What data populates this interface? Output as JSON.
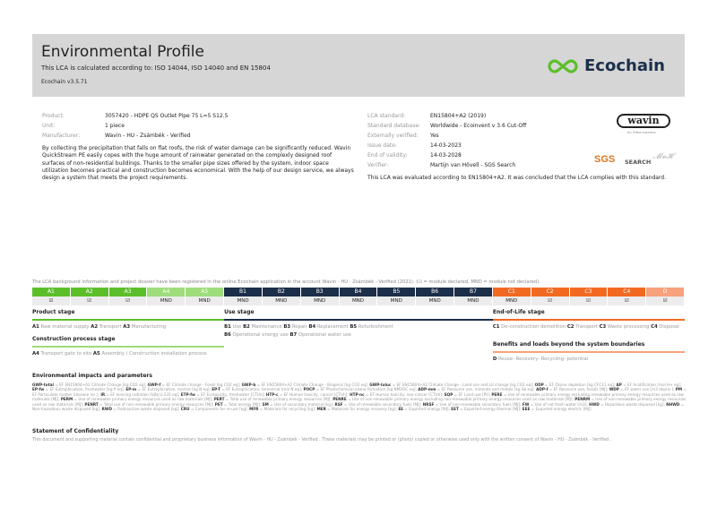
{
  "header": {
    "title": "Environmental Profile",
    "subtitle": "This LCA is calculated according to: ISO 14044, ISO 14040 and EN 15804",
    "version": "Ecochain v3.5.71",
    "logo": "Ecochain"
  },
  "product_info": [
    {
      "label": "Product:",
      "value": "3057420 - HDPE QS Outlet Pipe 75 L=5 S12.5"
    },
    {
      "label": "Unit:",
      "value": "1 piece"
    },
    {
      "label": "Manufacturer:",
      "value": "Wavin - HU - Zsámbék - Verified"
    }
  ],
  "description": "By collecting the precipitation that falls on flat roofs, the risk of water damage can be significantly reduced. Wavin QuickStream PE easily copes with the huge amount of rainwater generated on the complexly designed roof surfaces of non-residential buildings. Thanks to the smaller pipe sizes offered by the system, indoor space utilization becomes practical and construction becomes economical. With the help of our design service, we always design a system that meets the project requirements.",
  "lca_info": [
    {
      "label": "LCA standard:",
      "value": "EN15804+A2 (2019)"
    },
    {
      "label": "Standard database:",
      "value": "Worldwide - Ecoinvent v 3.6 Cut-Off"
    },
    {
      "label": "Externally verified:",
      "value": "Yes"
    },
    {
      "label": "Issue date:",
      "value": "14-03-2023"
    },
    {
      "label": "End of validity:",
      "value": "14-03-2028"
    },
    {
      "label": "Verifier:",
      "value": "Martijn van Hövell - SGS Search"
    }
  ],
  "conclusion": "This LCA was evaluated according to EN15804+A2. It was concluded that the LCA complies with this standard.",
  "logos": {
    "wavin": "wavin",
    "wavin_sub": "An Orbia business",
    "sgs": "SGS",
    "sgs_search": "SEARCH"
  },
  "note": "The LCA background information and project dossier have been registered in the online Ecochain application in the account Wavin - HU - Zsámbék - Verified (2021). (☑ = module declared, MND = module not declared).",
  "modules": [
    {
      "code": "A1",
      "mark": "☑",
      "color": "#5cbf2a"
    },
    {
      "code": "A2",
      "mark": "☑",
      "color": "#5cbf2a"
    },
    {
      "code": "A3",
      "mark": "☑",
      "color": "#5cbf2a"
    },
    {
      "code": "A4",
      "mark": "MND",
      "color": "#9edc7c"
    },
    {
      "code": "A5",
      "mark": "MND",
      "color": "#9edc7c"
    },
    {
      "code": "B1",
      "mark": "MND",
      "color": "#1c2f4a"
    },
    {
      "code": "B2",
      "mark": "MND",
      "color": "#1c2f4a"
    },
    {
      "code": "B3",
      "mark": "MND",
      "color": "#1c2f4a"
    },
    {
      "code": "B4",
      "mark": "MND",
      "color": "#1c2f4a"
    },
    {
      "code": "B5",
      "mark": "MND",
      "color": "#1c2f4a"
    },
    {
      "code": "B6",
      "mark": "MND",
      "color": "#1c2f4a"
    },
    {
      "code": "B7",
      "mark": "MND",
      "color": "#1c2f4a"
    },
    {
      "code": "C1",
      "mark": "MND",
      "color": "#f26a22"
    },
    {
      "code": "C2",
      "mark": "☑",
      "color": "#f26a22"
    },
    {
      "code": "C3",
      "mark": "☑",
      "color": "#f26a22"
    },
    {
      "code": "C4",
      "mark": "☑",
      "color": "#f26a22"
    },
    {
      "code": "D",
      "mark": "☑",
      "color": "#f7a27c"
    }
  ],
  "stages": {
    "product": {
      "title": "Product stage",
      "items": [
        [
          "A1",
          "Raw material supply"
        ],
        [
          "A2",
          "Transport"
        ],
        [
          "A3",
          "Manufacturing"
        ]
      ]
    },
    "construction": {
      "title": "Construction process stage",
      "items": [
        [
          "A4",
          "Transport gate to site"
        ],
        [
          "A5",
          "Assembly / Construction installation process"
        ]
      ]
    },
    "use": {
      "title": "Use stage",
      "items": [
        [
          "B1",
          "Use"
        ],
        [
          "B2",
          "Maintenance"
        ],
        [
          "B3",
          "Repair"
        ],
        [
          "B4",
          "Replacement"
        ],
        [
          "B5",
          "Refurbishment"
        ],
        [
          "B6",
          "Operational energy use"
        ],
        [
          "B7",
          "Operational water use"
        ]
      ]
    },
    "eol": {
      "title": "End-of-Life stage",
      "items": [
        [
          "C1",
          "De-construction demolition"
        ],
        [
          "C2",
          "Transport"
        ],
        [
          "C3",
          "Waste processing"
        ],
        [
          "C4",
          "Disposal"
        ]
      ]
    },
    "beyond": {
      "title": "Benefits and loads beyond the system boundaries",
      "items": [
        [
          "D",
          "Reuse- Recovery- Recycling- potential"
        ]
      ]
    }
  },
  "glossary_title": "Environmental impacts and parameters",
  "glossary": [
    [
      "GWP-total",
      "EF EN15804+A2 Climate Change [kg CO2 eq]"
    ],
    [
      "GWP-f",
      "EF Climate change - Fossil [kg CO2 eq]"
    ],
    [
      "GWP-b",
      "EF EN15804+A2 Climate Change - Biogenic [kg CO2 eq]"
    ],
    [
      "GWP-luluc",
      "EF EN15804+A2 Climate Change - Land use and LU change [kg CO2 eq]"
    ],
    [
      "ODP",
      "EF Ozone depletion [kg CFC11 eq]"
    ],
    [
      "AP",
      "EF Acidification [mol H+ eq]"
    ],
    [
      "EP-fw",
      "EF Eutrophication, freshwater [kg P eq]"
    ],
    [
      "EP-m",
      "EF Eutrophication, marine [kg N eq]"
    ],
    [
      "EP-T",
      "EF Eutrophication, terrestrial [mol N eq]"
    ],
    [
      "POCP",
      "EF Photochemical ozone formation [kg NMVOC eq]"
    ],
    [
      "ADP-mm",
      "EF Resource use, minerals and metals [kg Sb eq]"
    ],
    [
      "ADP-f",
      "EF Resource use, fossils [MJ]"
    ],
    [
      "WDP",
      "EF water use [m3 depriv.]"
    ],
    [
      "PM",
      "EF Particulate matter [disease inc.]"
    ],
    [
      "IR",
      "EF Ionising radiation [kBq U-235 eq]"
    ],
    [
      "ETP-fw",
      "EF Ecotoxicity, freshwater [CTUe]"
    ],
    [
      "HTP-c",
      "EF Human toxicity, cancer [CTUh]"
    ],
    [
      "HTP-nc",
      "EF Human toxicity, non-cancer [CTUh]"
    ],
    [
      "SQP",
      "EF Land use [Pt]"
    ],
    [
      "PERE",
      "Use of renewable primary energy excluding renewable primary energy resources used as raw materials [MJ]"
    ],
    [
      "PERM",
      "Use of renewable primary energy resources used as raw materials [MJ]"
    ],
    [
      "PERT",
      "Total use of renewable primary energy resources [MJ]"
    ],
    [
      "PENRE",
      "Use of non-renewable primary energy excluding non-renewable primary energy resources used as raw materials [MJ]"
    ],
    [
      "PENRM",
      "Use of non-renewable primary energy resources used as raw materials [MJ]"
    ],
    [
      "PENRT",
      "Total use of non-renewable primary energy resources [MJ]"
    ],
    [
      "PET",
      "Total energy [MJ]"
    ],
    [
      "SM",
      "Use of secondary material [kg]"
    ],
    [
      "RSF",
      "Use of renewable secondary fuels [MJ]"
    ],
    [
      "NRSF",
      "Use of non-renewable secondary fuels [MJ]"
    ],
    [
      "FW",
      "Use of net fresh water [m3]"
    ],
    [
      "HWD",
      "Hazardous waste disposed [kg]"
    ],
    [
      "NHWD",
      "Non-hazardous waste disposed [kg]"
    ],
    [
      "RWD",
      "Radioactive waste disposed [kg]"
    ],
    [
      "CRU",
      "Components for re-use [kg]"
    ],
    [
      "MFR",
      "Materials for recycling [kg]"
    ],
    [
      "MER",
      "Materials for energy recovery [kg]"
    ],
    [
      "EE",
      "Exported energy [MJ]"
    ],
    [
      "EET",
      "Exported energy thermal [MJ]"
    ],
    [
      "EEE",
      "Exported energy electric [MJ]"
    ]
  ],
  "confidentiality": {
    "title": "Statement of Confidentiality",
    "text": "This document and supporting material contain confidential and proprietary business information of Wavin - HU - Zsámbék - Verified . These materials may be printed or (photo) copied or otherwise used only with the written consent of Wavin - HU - Zsámbék - Verified ."
  }
}
